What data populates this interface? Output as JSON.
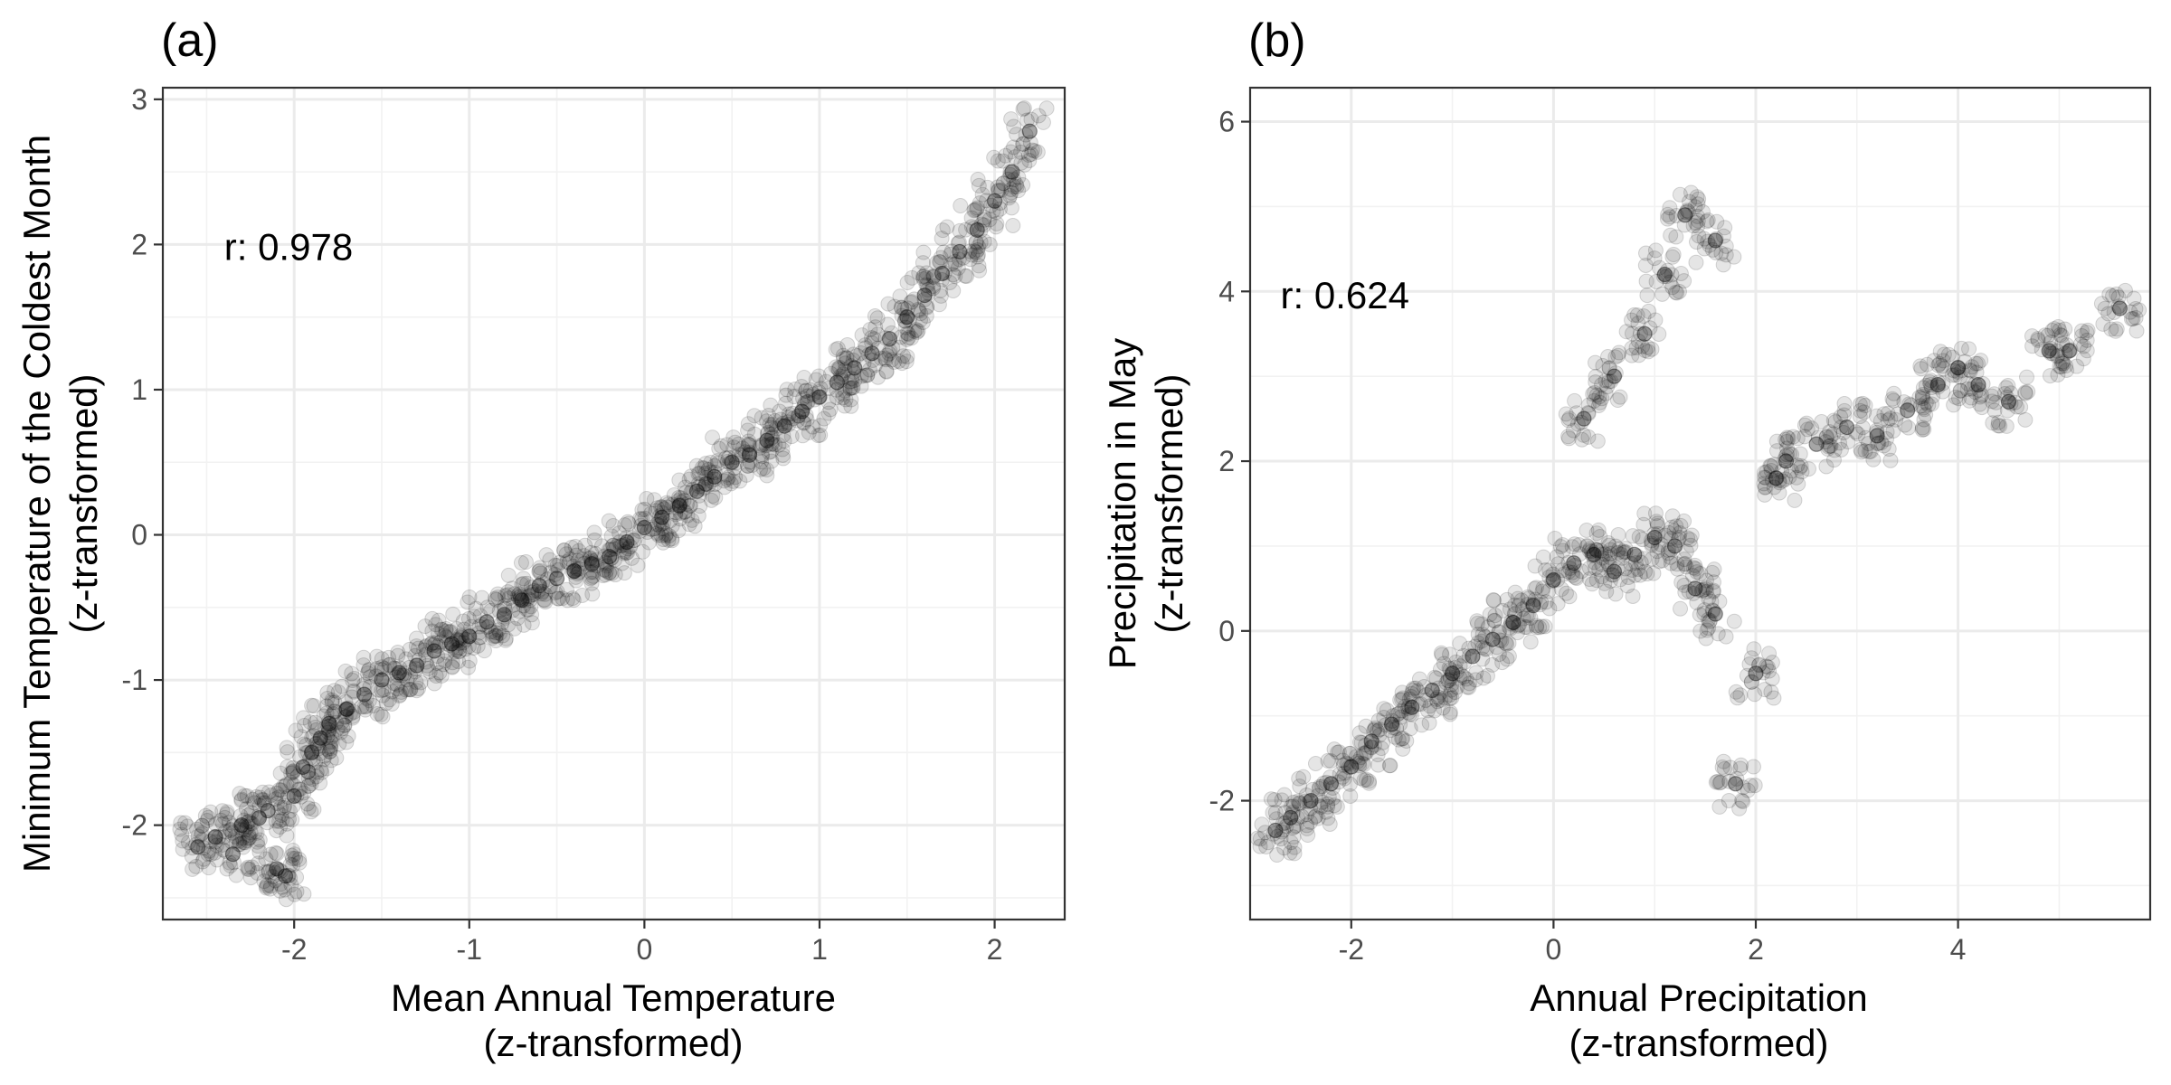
{
  "chart_data": [
    {
      "type": "scatter",
      "panel_label": "(a)",
      "xlabel": [
        "Mean Annual Temperature",
        "(z-transformed)"
      ],
      "ylabel": [
        "Minimum Temperature of the Coldest Month",
        "(z-transformed)"
      ],
      "xlim": [
        -2.75,
        2.4
      ],
      "ylim": [
        -2.65,
        3.08
      ],
      "xticks": [
        -2,
        -1,
        0,
        1,
        2
      ],
      "yticks": [
        -2,
        -1,
        0,
        1,
        2,
        3
      ],
      "xtick_labels": [
        "-2",
        "-1",
        "0",
        "1",
        "2"
      ],
      "ytick_labels": [
        "-2",
        "-1",
        "0",
        "1",
        "2",
        "3"
      ],
      "grid": true,
      "point_color": "#000000",
      "point_alpha": 0.1,
      "annotation": {
        "text": "r: 0.978",
        "x": -2.4,
        "y": 1.98
      },
      "x": [
        -2.55,
        -2.45,
        -2.35,
        -2.3,
        -2.2,
        -2.15,
        -2.1,
        -2.05,
        -2.0,
        -1.95,
        -1.9,
        -1.85,
        -1.8,
        -1.7,
        -1.6,
        -1.5,
        -1.4,
        -1.3,
        -1.2,
        -1.1,
        -1.0,
        -0.9,
        -0.8,
        -0.7,
        -0.6,
        -0.5,
        -0.4,
        -0.3,
        -0.2,
        -0.1,
        0.0,
        0.1,
        0.2,
        0.3,
        0.4,
        0.5,
        0.6,
        0.7,
        0.8,
        0.9,
        1.0,
        1.1,
        1.2,
        1.3,
        1.4,
        1.5,
        1.6,
        1.7,
        1.8,
        1.9,
        2.0,
        2.1,
        2.2
      ],
      "y": [
        -2.15,
        -2.08,
        -2.2,
        -2.0,
        -1.95,
        -1.9,
        -2.3,
        -2.35,
        -1.8,
        -1.6,
        -1.5,
        -1.4,
        -1.3,
        -1.2,
        -1.1,
        -1.0,
        -0.95,
        -0.9,
        -0.8,
        -0.75,
        -0.7,
        -0.6,
        -0.55,
        -0.45,
        -0.35,
        -0.3,
        -0.25,
        -0.2,
        -0.15,
        -0.05,
        0.05,
        0.12,
        0.2,
        0.3,
        0.4,
        0.5,
        0.55,
        0.65,
        0.75,
        0.85,
        0.95,
        1.05,
        1.15,
        1.25,
        1.35,
        1.5,
        1.65,
        1.8,
        1.95,
        2.1,
        2.3,
        2.5,
        2.78
      ]
    },
    {
      "type": "scatter",
      "panel_label": "(b)",
      "xlabel": [
        "Annual Precipitation",
        "(z-transformed)"
      ],
      "ylabel": [
        "Precipitation in May",
        "(z-transformed)"
      ],
      "xlim": [
        -3.0,
        5.9
      ],
      "ylim": [
        -3.4,
        6.4
      ],
      "xticks": [
        -2,
        0,
        2,
        4
      ],
      "yticks": [
        -2,
        0,
        2,
        4,
        6
      ],
      "xtick_labels": [
        "-2",
        "0",
        "2",
        "4"
      ],
      "ytick_labels": [
        "-2",
        "0",
        "2",
        "4",
        "6"
      ],
      "grid": true,
      "point_color": "#000000",
      "point_alpha": 0.1,
      "annotation": {
        "text": "r: 0.624",
        "x": -2.7,
        "y": 3.95
      },
      "x": [
        -2.75,
        -2.6,
        -2.4,
        -2.2,
        -2.0,
        -1.8,
        -1.6,
        -1.4,
        -1.2,
        -1.0,
        -0.8,
        -0.6,
        -0.4,
        -0.2,
        0.0,
        0.2,
        0.4,
        0.6,
        0.8,
        1.0,
        1.2,
        1.4,
        1.6,
        1.8,
        2.0,
        2.2,
        0.3,
        0.6,
        0.9,
        1.1,
        1.3,
        1.6,
        2.3,
        2.6,
        2.9,
        3.2,
        3.5,
        3.8,
        4.0,
        4.2,
        4.5,
        4.9,
        5.1,
        5.6
      ],
      "y": [
        -2.35,
        -2.2,
        -2.0,
        -1.8,
        -1.6,
        -1.3,
        -1.1,
        -0.9,
        -0.7,
        -0.5,
        -0.3,
        -0.1,
        0.1,
        0.3,
        0.6,
        0.8,
        0.9,
        0.7,
        0.9,
        1.1,
        1.0,
        0.5,
        0.2,
        -1.8,
        -0.5,
        1.8,
        2.5,
        3.0,
        3.5,
        4.2,
        4.9,
        4.6,
        2.0,
        2.2,
        2.4,
        2.3,
        2.6,
        2.9,
        3.1,
        2.9,
        2.7,
        3.3,
        3.3,
        3.8
      ]
    }
  ]
}
